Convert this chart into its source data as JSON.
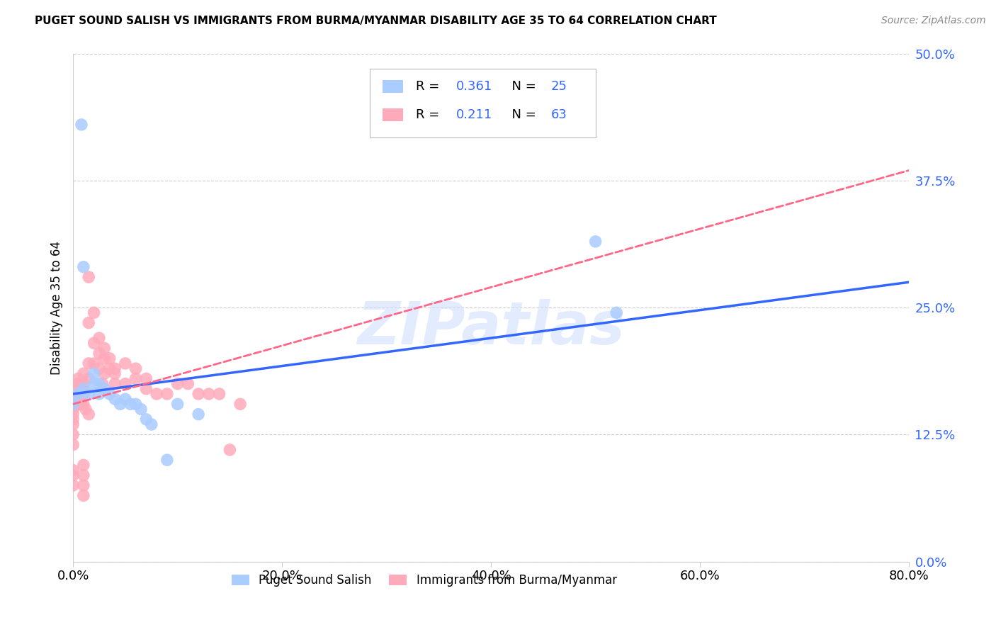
{
  "title": "PUGET SOUND SALISH VS IMMIGRANTS FROM BURMA/MYANMAR DISABILITY AGE 35 TO 64 CORRELATION CHART",
  "source": "Source: ZipAtlas.com",
  "xlabel_ticks": [
    "0.0%",
    "20.0%",
    "40.0%",
    "60.0%",
    "80.0%"
  ],
  "xlabel_tick_vals": [
    0.0,
    0.2,
    0.4,
    0.6,
    0.8
  ],
  "ylabel": "Disability Age 35 to 64",
  "ylabel_ticks": [
    "0.0%",
    "12.5%",
    "25.0%",
    "37.5%",
    "50.0%"
  ],
  "ylabel_tick_vals": [
    0.0,
    0.125,
    0.25,
    0.375,
    0.5
  ],
  "xlim": [
    0.0,
    0.8
  ],
  "ylim": [
    0.0,
    0.5
  ],
  "legend_label1": "Puget Sound Salish",
  "legend_label2": "Immigrants from Burma/Myanmar",
  "R1": 0.361,
  "N1": 25,
  "R2": 0.211,
  "N2": 63,
  "color1": "#aaccff",
  "color2": "#ffaabb",
  "trendline1_color": "#3366ff",
  "trendline2_color": "#ff6688",
  "watermark": "ZIPatlas",
  "scatter1_x": [
    0.005,
    0.008,
    0.01,
    0.01,
    0.015,
    0.02,
    0.02,
    0.025,
    0.025,
    0.03,
    0.035,
    0.04,
    0.045,
    0.05,
    0.055,
    0.06,
    0.065,
    0.07,
    0.075,
    0.09,
    0.1,
    0.12,
    0.5,
    0.52,
    0.0
  ],
  "scatter1_y": [
    0.165,
    0.43,
    0.17,
    0.29,
    0.165,
    0.175,
    0.185,
    0.165,
    0.175,
    0.17,
    0.165,
    0.16,
    0.155,
    0.16,
    0.155,
    0.155,
    0.15,
    0.14,
    0.135,
    0.1,
    0.155,
    0.145,
    0.315,
    0.245,
    0.155
  ],
  "scatter2_x": [
    0.0,
    0.0,
    0.0,
    0.0,
    0.0,
    0.0,
    0.005,
    0.005,
    0.005,
    0.008,
    0.008,
    0.01,
    0.01,
    0.01,
    0.01,
    0.012,
    0.015,
    0.015,
    0.015,
    0.015,
    0.02,
    0.02,
    0.02,
    0.025,
    0.025,
    0.025,
    0.028,
    0.03,
    0.03,
    0.03,
    0.035,
    0.035,
    0.04,
    0.04,
    0.04,
    0.05,
    0.05,
    0.06,
    0.06,
    0.07,
    0.07,
    0.08,
    0.09,
    0.1,
    0.11,
    0.12,
    0.13,
    0.14,
    0.15,
    0.16,
    0.0,
    0.0,
    0.0,
    0.0,
    0.0,
    0.0,
    0.005,
    0.005,
    0.01,
    0.01,
    0.01,
    0.01,
    0.015
  ],
  "scatter2_y": [
    0.155,
    0.145,
    0.135,
    0.125,
    0.115,
    0.09,
    0.175,
    0.165,
    0.155,
    0.17,
    0.155,
    0.185,
    0.175,
    0.165,
    0.155,
    0.15,
    0.28,
    0.235,
    0.195,
    0.18,
    0.245,
    0.215,
    0.195,
    0.22,
    0.205,
    0.19,
    0.175,
    0.21,
    0.2,
    0.185,
    0.2,
    0.19,
    0.19,
    0.185,
    0.175,
    0.195,
    0.175,
    0.19,
    0.18,
    0.18,
    0.17,
    0.165,
    0.165,
    0.175,
    0.175,
    0.165,
    0.165,
    0.165,
    0.11,
    0.155,
    0.17,
    0.16,
    0.15,
    0.14,
    0.085,
    0.075,
    0.18,
    0.165,
    0.095,
    0.085,
    0.075,
    0.065,
    0.145
  ],
  "trendline1_x0": 0.0,
  "trendline1_y0": 0.165,
  "trendline1_x1": 0.8,
  "trendline1_y1": 0.275,
  "trendline2_x0": 0.0,
  "trendline2_y0": 0.155,
  "trendline2_x1": 0.8,
  "trendline2_y1": 0.385
}
